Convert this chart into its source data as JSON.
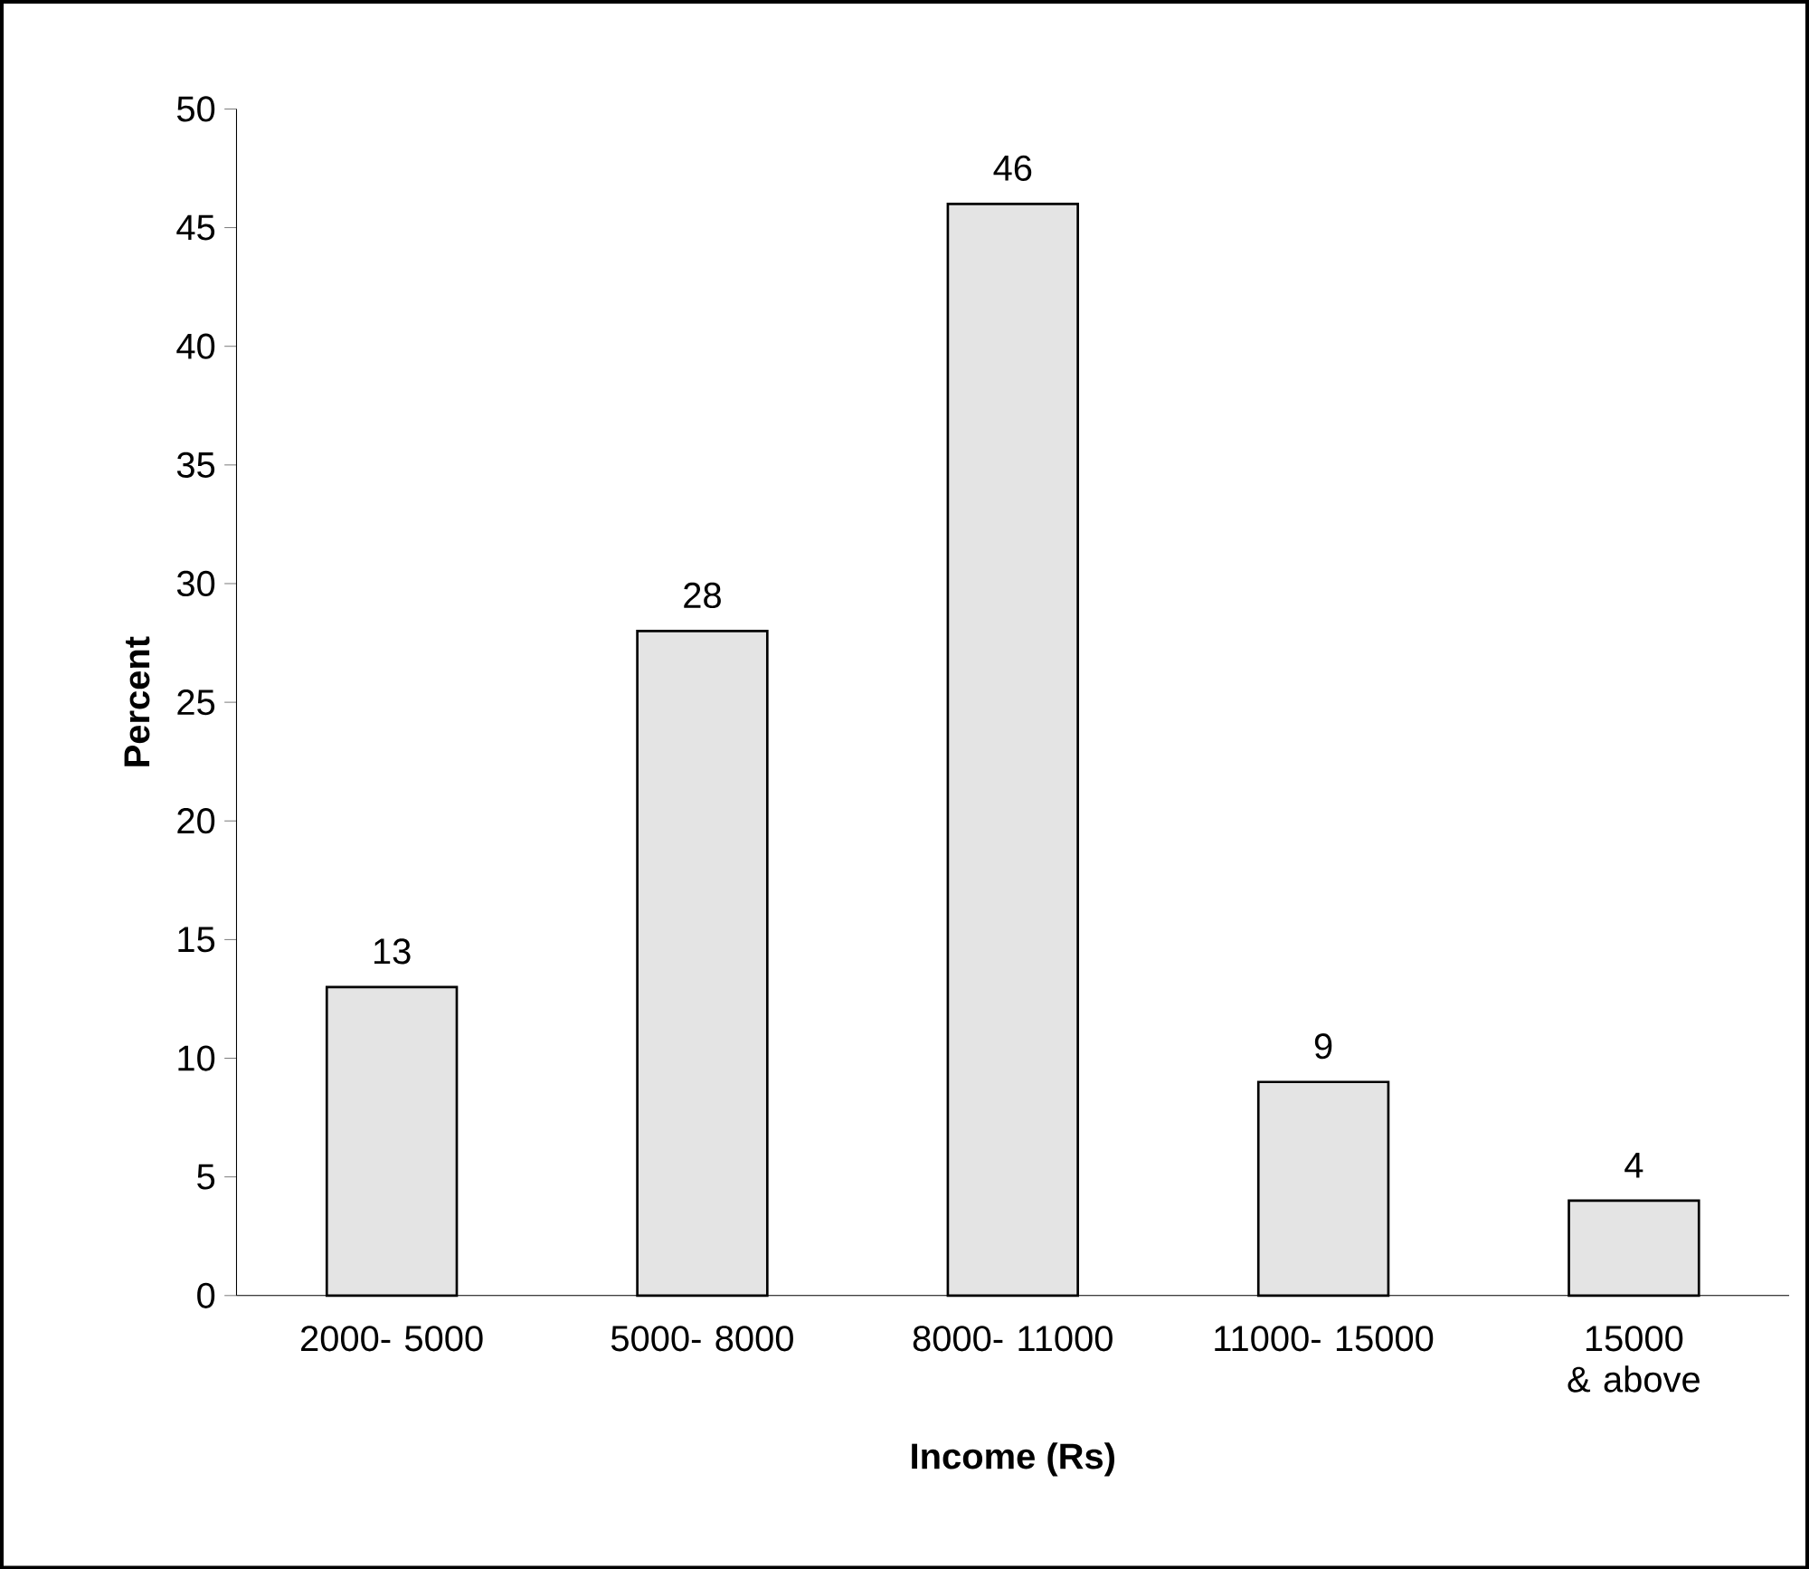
{
  "chart_data": {
    "type": "bar",
    "xlabel": "Income (Rs)",
    "ylabel": "Percent",
    "categories": [
      "2000- 5000",
      "5000- 8000",
      "8000- 11000",
      "11000- 15000",
      "15000 & above"
    ],
    "values": [
      13,
      28,
      46,
      9,
      4
    ],
    "color": "#e4e4e4",
    "ylim": [
      0,
      50
    ],
    "yticks": [
      0,
      5,
      10,
      15,
      20,
      25,
      30,
      35,
      40,
      45,
      50
    ],
    "data_labels": true,
    "grid": false
  }
}
